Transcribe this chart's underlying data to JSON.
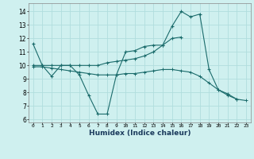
{
  "title": "",
  "xlabel": "Humidex (Indice chaleur)",
  "background_color": "#cff0ef",
  "grid_color": "#b0dede",
  "line_color": "#1a6b6b",
  "xlim": [
    -0.5,
    23.5
  ],
  "ylim": [
    5.8,
    14.6
  ],
  "yticks": [
    6,
    7,
    8,
    9,
    10,
    11,
    12,
    13,
    14
  ],
  "xticks": [
    0,
    1,
    2,
    3,
    4,
    5,
    6,
    7,
    8,
    9,
    10,
    11,
    12,
    13,
    14,
    15,
    16,
    17,
    18,
    19,
    20,
    21,
    22,
    23
  ],
  "series0": [
    11.6,
    10.0,
    9.2,
    10.0,
    10.0,
    9.3,
    7.8,
    6.4,
    6.4,
    9.3,
    11.0,
    11.1,
    11.4,
    11.5,
    11.5,
    12.9,
    14.0,
    13.6,
    13.8,
    9.7,
    8.2,
    7.9,
    7.5,
    null
  ],
  "series1": [
    9.9,
    9.9,
    9.8,
    9.7,
    9.6,
    9.5,
    9.4,
    9.3,
    9.3,
    9.3,
    9.4,
    9.4,
    9.5,
    9.6,
    9.7,
    9.7,
    9.6,
    9.5,
    9.2,
    8.7,
    8.2,
    7.8,
    7.5,
    7.4
  ],
  "series2": [
    10.0,
    10.0,
    10.0,
    10.0,
    10.0,
    10.0,
    10.0,
    10.0,
    10.2,
    10.3,
    10.4,
    10.5,
    10.7,
    11.0,
    11.5,
    12.0,
    12.1,
    null,
    null,
    null,
    null,
    null,
    null,
    null
  ]
}
